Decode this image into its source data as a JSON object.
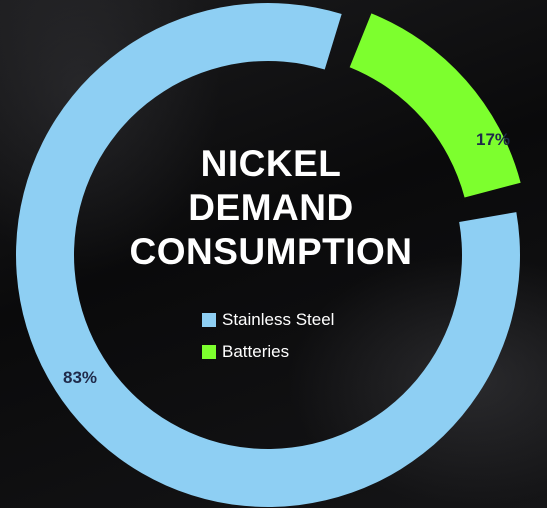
{
  "chart_data": {
    "type": "pie",
    "title_lines": [
      "NICKEL",
      "DEMAND",
      "CONSUMPTION"
    ],
    "donut": true,
    "categories": [
      "Stainless Steel",
      "Batteries"
    ],
    "values": [
      83,
      17
    ],
    "data_labels": [
      "83%",
      "17%"
    ],
    "colors": [
      "#8ecff3",
      "#7dff2e"
    ],
    "label_color": "#1f2a4a",
    "legend_position": "center"
  }
}
